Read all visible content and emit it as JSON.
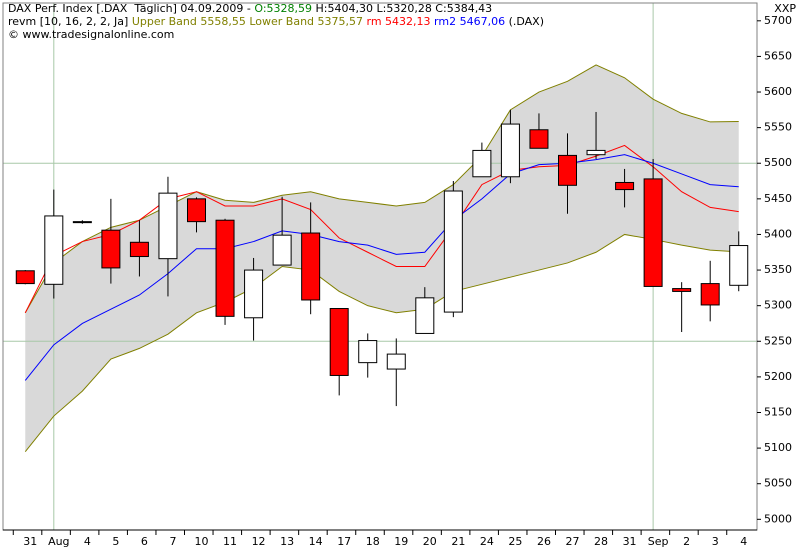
{
  "chart_data": {
    "type": "candlestick",
    "corner_label": "XXP",
    "header_lines": [
      [
        {
          "text": "DAX Perf. Index [.DAX  Täglich] 04.09.2009 - ",
          "color": "#000000"
        },
        {
          "text": "O:5328,59",
          "color": "#008000"
        },
        {
          "text": " H:5404,30 L:5320,28 C:5384,43",
          "color": "#000000"
        }
      ],
      [
        {
          "text": "revm [10, 16, 2, 2, Ja] ",
          "color": "#000000"
        },
        {
          "text": "Upper Band 5558,55 Lower Band 5375,57 ",
          "color": "#808000"
        },
        {
          "text": "rm 5432,13 ",
          "color": "#ff0000"
        },
        {
          "text": "rm2 5467,06 ",
          "color": "#0000ff"
        },
        {
          "text": "(.DAX)",
          "color": "#000000"
        }
      ],
      [
        {
          "text": "© www.tradesignalonline.com",
          "color": "#000000"
        }
      ]
    ],
    "categories": [
      "31",
      "Aug",
      "4",
      "5",
      "6",
      "7",
      "10",
      "11",
      "12",
      "13",
      "14",
      "17",
      "18",
      "19",
      "20",
      "21",
      "24",
      "25",
      "26",
      "27",
      "28",
      "31",
      "Sep",
      "2",
      "3",
      "4"
    ],
    "open": [
      5349,
      5330,
      5417,
      5406,
      5389,
      5366,
      5450,
      5420,
      5283,
      5357,
      5402,
      5296,
      5220,
      5211,
      5261,
      5291,
      5481,
      5481,
      5547,
      5511,
      5512,
      5473,
      5478,
      5324,
      5331,
      5328.59
    ],
    "high": [
      5350,
      5463,
      5420,
      5450,
      5420,
      5481,
      5452,
      5422,
      5367,
      5453,
      5445,
      5296,
      5261,
      5254,
      5326,
      5475,
      5529,
      5575,
      5570,
      5542,
      5572,
      5492,
      5506,
      5333,
      5363,
      5404.3
    ],
    "low": [
      5330,
      5310,
      5415,
      5331,
      5341,
      5313,
      5403,
      5273,
      5251,
      5357,
      5288,
      5174,
      5199,
      5159,
      5261,
      5284,
      5481,
      5472,
      5521,
      5429,
      5506,
      5438,
      5327,
      5263,
      5278,
      5320.28
    ],
    "close": [
      5331,
      5426,
      5418,
      5353,
      5369,
      5458,
      5418,
      5285,
      5350,
      5399,
      5308,
      5202,
      5251,
      5232,
      5311,
      5461,
      5518,
      5555,
      5521,
      5469,
      5518,
      5463,
      5327,
      5320,
      5301,
      5384.43
    ],
    "up_color": "#ffffff",
    "down_color": "#ff0000",
    "lines": [
      {
        "color": "#808000",
        "values": [
          5290,
          5360,
          5390,
          5410,
          5420,
          5440,
          5460,
          5448,
          5445,
          5455,
          5460,
          5450,
          5445,
          5440,
          5445,
          5470,
          5510,
          5575,
          5600,
          5615,
          5638,
          5620,
          5590,
          5570,
          5558,
          5558.55
        ]
      },
      {
        "color": "#808000",
        "values": [
          5095,
          5145,
          5180,
          5225,
          5240,
          5260,
          5290,
          5305,
          5325,
          5355,
          5350,
          5320,
          5300,
          5290,
          5295,
          5320,
          5330,
          5340,
          5350,
          5360,
          5375,
          5400,
          5393,
          5385,
          5378,
          5375.57
        ]
      },
      {
        "color": "#ff0000",
        "values": [
          5290,
          5370,
          5390,
          5400,
          5420,
          5450,
          5460,
          5440,
          5440,
          5450,
          5435,
          5395,
          5375,
          5355,
          5355,
          5410,
          5470,
          5490,
          5495,
          5497,
          5510,
          5525,
          5495,
          5460,
          5438,
          5432.13
        ]
      },
      {
        "color": "#0000ff",
        "values": [
          5195,
          5245,
          5275,
          5295,
          5315,
          5345,
          5380,
          5380,
          5390,
          5405,
          5400,
          5390,
          5385,
          5372,
          5375,
          5420,
          5450,
          5485,
          5498,
          5500,
          5505,
          5512,
          5500,
          5485,
          5470,
          5467.06
        ]
      }
    ],
    "band_fill": "#d9d9d9",
    "ylim": [
      4985,
      5725
    ],
    "yticks": [
      5000,
      5050,
      5100,
      5150,
      5200,
      5250,
      5300,
      5350,
      5400,
      5450,
      5500,
      5550,
      5600,
      5650,
      5700
    ],
    "hgrid": [
      5250,
      5500
    ],
    "vgrid": [
      1,
      22
    ]
  }
}
